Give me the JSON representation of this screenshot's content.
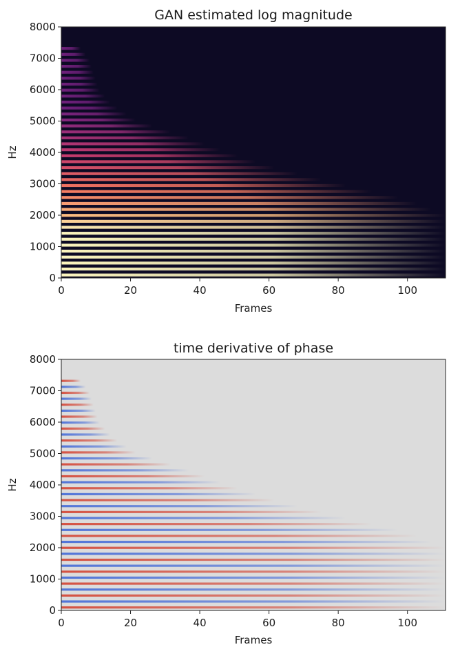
{
  "chart_data": [
    {
      "type": "heatmap",
      "title": "GAN estimated log magnitude",
      "xlabel": "Frames",
      "ylabel": "Hz",
      "xlim": [
        0,
        111
      ],
      "ylim": [
        0,
        8000
      ],
      "xticks": [
        0,
        20,
        40,
        60,
        80,
        100
      ],
      "yticks": [
        0,
        1000,
        2000,
        3000,
        4000,
        5000,
        6000,
        7000,
        8000
      ],
      "colormap": "magma",
      "background_color": "#0d0a24",
      "grid": false,
      "description_of_data": "harmonic partials (horizontal bands) spaced ~190 Hz; bright below ~1500 Hz; upper partials decay over time",
      "harmonics": {
        "fundamental_hz": 95,
        "spacing_hz": 190,
        "count": 40,
        "decay_end_frames": [
          [
            1000,
            111
          ],
          [
            2000,
            111
          ],
          [
            2500,
            100
          ],
          [
            3000,
            80
          ],
          [
            3500,
            62
          ],
          [
            4000,
            48
          ],
          [
            4500,
            36
          ],
          [
            5000,
            22
          ],
          [
            5500,
            15
          ],
          [
            6000,
            11
          ],
          [
            7000,
            8
          ],
          [
            7400,
            5
          ]
        ]
      }
    },
    {
      "type": "heatmap",
      "title": "time derivative of phase",
      "xlabel": "Frames",
      "ylabel": "Hz",
      "xlim": [
        0,
        111
      ],
      "ylim": [
        0,
        8000
      ],
      "xticks": [
        0,
        20,
        40,
        60,
        80,
        100
      ],
      "yticks": [
        0,
        1000,
        2000,
        3000,
        4000,
        5000,
        6000,
        7000,
        8000
      ],
      "colormap": "coolwarm",
      "background_color": "#dcdcdc",
      "grid": false,
      "colors": {
        "positive": "#d44a3a",
        "negative": "#4a6fd8",
        "neutral": "#dcdcdc"
      }
    }
  ]
}
